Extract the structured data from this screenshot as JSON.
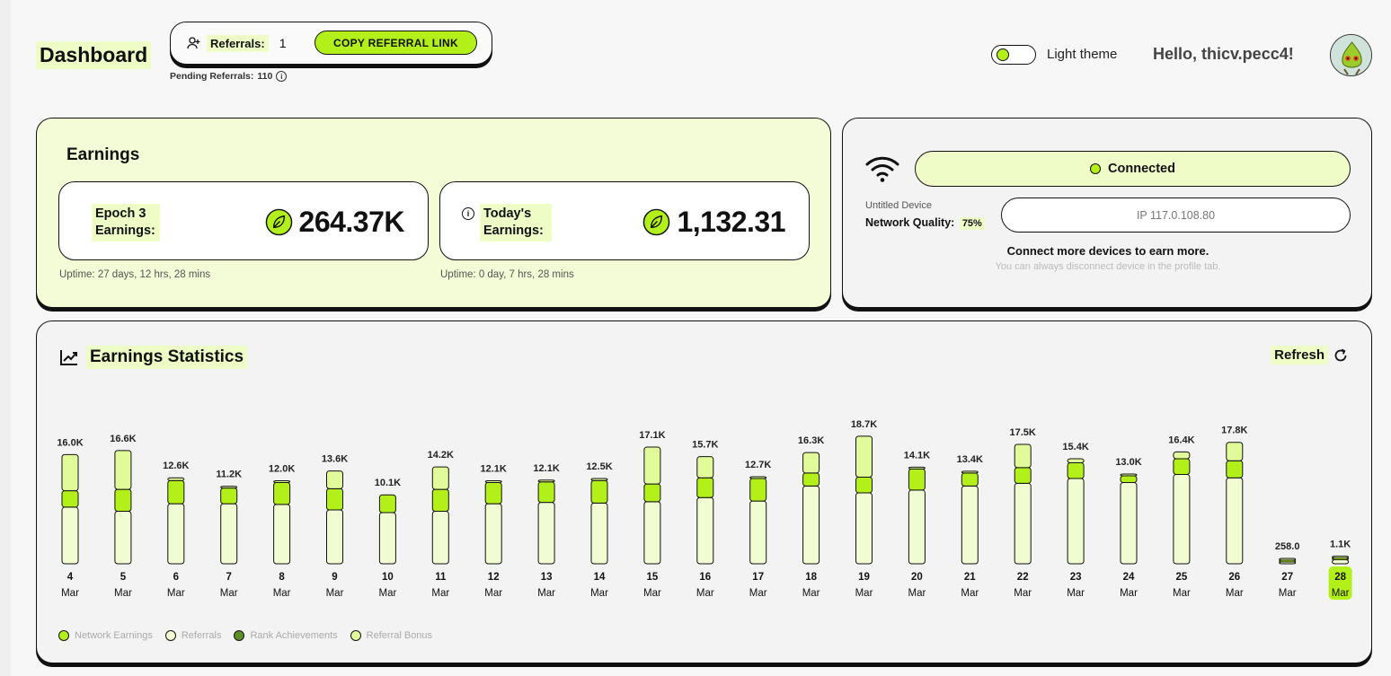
{
  "header": {
    "title": "Dashboard",
    "referrals_label": "Referrals:",
    "referrals_count": "1",
    "copy_button": "COPY REFERRAL LINK",
    "pending_label": "Pending Referrals:",
    "pending_count": "110",
    "theme_label": "Light theme",
    "greeting": "Hello, thicv.pecc4!"
  },
  "earnings": {
    "title": "Earnings",
    "epoch_label": "Epoch 3 Earnings:",
    "epoch_value": "264.37K",
    "epoch_uptime": "Uptime: 27 days, 12 hrs, 28 mins",
    "today_label": "Today's Earnings:",
    "today_value": "1,132.31",
    "today_uptime": "Uptime: 0 day, 7 hrs, 28 mins"
  },
  "device": {
    "status": "Connected",
    "name": "Untitled Device",
    "quality_label": "Network Quality:",
    "quality_value": "75%",
    "ip": "IP 117.0.108.80",
    "connect_more": "Connect more devices to earn more.",
    "disconnect_hint": "You can always disconnect device in the profile tab."
  },
  "stats": {
    "title": "Earnings Statistics",
    "refresh_label": "Refresh"
  },
  "colors": {
    "accent": "#b3f01a",
    "pale": "#eefcc6",
    "rank": "#5e8f25",
    "bar_base": "#f1fcd2",
    "bar_top": "#e1fa9a"
  },
  "chart_data": {
    "type": "bar",
    "categories": [
      "4 Mar",
      "5 Mar",
      "6 Mar",
      "7 Mar",
      "8 Mar",
      "9 Mar",
      "10 Mar",
      "11 Mar",
      "12 Mar",
      "13 Mar",
      "14 Mar",
      "15 Mar",
      "16 Mar",
      "17 Mar",
      "18 Mar",
      "19 Mar",
      "20 Mar",
      "21 Mar",
      "22 Mar",
      "23 Mar",
      "24 Mar",
      "25 Mar",
      "26 Mar",
      "27 Mar",
      "28 Mar"
    ],
    "day": [
      "4",
      "5",
      "6",
      "7",
      "8",
      "9",
      "10",
      "11",
      "12",
      "13",
      "14",
      "15",
      "16",
      "17",
      "18",
      "19",
      "20",
      "21",
      "22",
      "23",
      "24",
      "25",
      "26",
      "27",
      "28"
    ],
    "month": "Mar",
    "totals": [
      16.0,
      16.6,
      12.6,
      11.2,
      12.0,
      13.6,
      10.1,
      14.2,
      12.1,
      12.1,
      12.5,
      17.1,
      15.7,
      12.7,
      16.3,
      18.7,
      14.1,
      13.4,
      17.5,
      15.4,
      13.0,
      16.4,
      17.8,
      0.258,
      1.1
    ],
    "total_labels": [
      "16.0K",
      "16.6K",
      "12.6K",
      "11.2K",
      "12.0K",
      "13.6K",
      "10.1K",
      "14.2K",
      "12.1K",
      "12.1K",
      "12.5K",
      "17.1K",
      "15.7K",
      "12.7K",
      "16.3K",
      "18.7K",
      "14.1K",
      "13.4K",
      "17.5K",
      "15.4K",
      "13.0K",
      "16.4K",
      "17.8K",
      "258.0",
      "1.1K"
    ],
    "series": [
      {
        "name": "Network Earnings",
        "color": "#b3f01a",
        "values": [
          2.4,
          3.2,
          3.4,
          2.3,
          3.2,
          3.1,
          2.6,
          3.2,
          3.1,
          3.0,
          3.3,
          2.6,
          2.9,
          3.3,
          1.9,
          2.3,
          3.1,
          1.9,
          2.3,
          2.3,
          1.0,
          2.3,
          2.5,
          0.05,
          0.25
        ]
      },
      {
        "name": "Referrals",
        "color": "#f1fcd2",
        "values": [
          8.3,
          7.7,
          8.8,
          8.8,
          8.7,
          7.9,
          7.5,
          7.7,
          8.8,
          9.0,
          8.9,
          9.1,
          9.7,
          9.2,
          11.4,
          10.4,
          10.8,
          11.4,
          11.8,
          12.5,
          11.9,
          13.1,
          12.6,
          0.15,
          0.6
        ]
      },
      {
        "name": "Rank Achievements",
        "color": "#5e8f25",
        "values": [
          0,
          0,
          0,
          0,
          0,
          0,
          0,
          0,
          0,
          0,
          0,
          0,
          0,
          0,
          0,
          0,
          0,
          0,
          0,
          0,
          0,
          0,
          0,
          0,
          0
        ]
      },
      {
        "name": "Referral Bonus",
        "color": "#e1fa9a",
        "values": [
          5.3,
          5.7,
          0.4,
          0.1,
          0.1,
          2.6,
          0,
          3.3,
          0.2,
          0.1,
          0.3,
          5.4,
          3.1,
          0.2,
          3.0,
          6.0,
          0.2,
          0.1,
          3.4,
          0.6,
          0.1,
          1.0,
          2.7,
          0.058,
          0.25
        ]
      }
    ],
    "highlighted_category": "28 Mar",
    "legend_position": "bottom-left",
    "grid": false
  }
}
